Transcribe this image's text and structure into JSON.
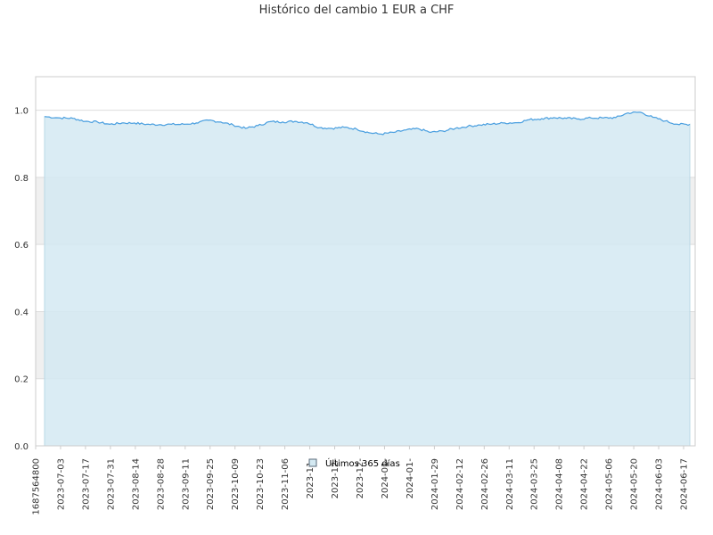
{
  "chart_data": {
    "type": "area",
    "title": "Histórico del cambio 1 EUR a CHF",
    "xlabel": "",
    "ylabel": "",
    "ylim": [
      0,
      1.1
    ],
    "yticks": [
      "0.0",
      "0.2",
      "0.4",
      "0.6",
      "0.8",
      "1.0"
    ],
    "xticks": [
      "1687564800",
      "2023-07-03",
      "2023-07-17",
      "2023-07-31",
      "2023-08-14",
      "2023-08-28",
      "2023-09-11",
      "2023-09-25",
      "2023-10-09",
      "2023-10-23",
      "2023-11-06",
      "2023-11-",
      "2023-12-",
      "2023-12-",
      "2024-01-",
      "2024-01-",
      "2024-01-29",
      "2024-02-12",
      "2024-02-26",
      "2024-03-11",
      "2024-03-25",
      "2024-04-08",
      "2024-04-22",
      "2024-05-06",
      "2024-05-20",
      "2024-06-03",
      "2024-06-17"
    ],
    "legend": "bottom-center",
    "grid": true,
    "colors": {
      "line": "#4a9fe0",
      "fill": "#d4e9f2",
      "band": "#f0f0f0",
      "grid": "#dddddd",
      "axis": "#cccccc",
      "text": "#333333"
    },
    "series": [
      {
        "name": "Últimos 365 días",
        "x": [
          "2023-06-24",
          "2023-07-03",
          "2023-07-10",
          "2023-07-17",
          "2023-07-24",
          "2023-07-31",
          "2023-08-07",
          "2023-08-14",
          "2023-08-21",
          "2023-08-28",
          "2023-09-04",
          "2023-09-11",
          "2023-09-18",
          "2023-09-25",
          "2023-10-02",
          "2023-10-09",
          "2023-10-16",
          "2023-10-23",
          "2023-10-30",
          "2023-11-06",
          "2023-11-13",
          "2023-11-20",
          "2023-11-27",
          "2023-12-04",
          "2023-12-11",
          "2023-12-18",
          "2023-12-25",
          "2024-01-01",
          "2024-01-08",
          "2024-01-15",
          "2024-01-22",
          "2024-01-29",
          "2024-02-05",
          "2024-02-12",
          "2024-02-19",
          "2024-02-26",
          "2024-03-04",
          "2024-03-11",
          "2024-03-18",
          "2024-03-25",
          "2024-04-01",
          "2024-04-08",
          "2024-04-15",
          "2024-04-22",
          "2024-04-29",
          "2024-05-06",
          "2024-05-13",
          "2024-05-20",
          "2024-05-27",
          "2024-06-03",
          "2024-06-10",
          "2024-06-17",
          "2024-06-24"
        ],
        "values": [
          0.981,
          0.977,
          0.976,
          0.967,
          0.965,
          0.958,
          0.962,
          0.962,
          0.958,
          0.957,
          0.958,
          0.958,
          0.962,
          0.97,
          0.965,
          0.956,
          0.946,
          0.954,
          0.966,
          0.965,
          0.967,
          0.963,
          0.948,
          0.946,
          0.949,
          0.944,
          0.933,
          0.929,
          0.934,
          0.941,
          0.945,
          0.934,
          0.938,
          0.946,
          0.952,
          0.956,
          0.959,
          0.962,
          0.963,
          0.972,
          0.975,
          0.978,
          0.976,
          0.974,
          0.977,
          0.977,
          0.978,
          0.992,
          0.994,
          0.979,
          0.968,
          0.958,
          0.958
        ]
      }
    ]
  }
}
